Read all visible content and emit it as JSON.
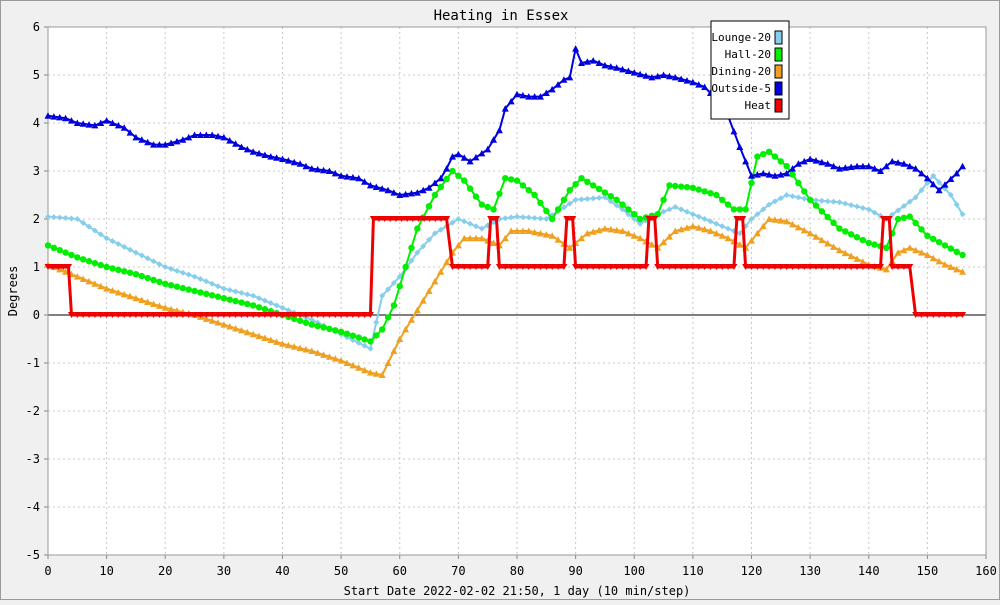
{
  "chart_data": {
    "type": "line",
    "title": "Heating in Essex",
    "xlabel": "Start Date 2022-02-02 21:50, 1 day (10 min/step)",
    "ylabel": "Degrees",
    "xlim": [
      0,
      160
    ],
    "ylim": [
      -5,
      6
    ],
    "xticks": [
      "0",
      "10",
      "20",
      "30",
      "40",
      "50",
      "60",
      "70",
      "80",
      "90",
      "100",
      "110",
      "120",
      "130",
      "140",
      "150",
      "160"
    ],
    "yticks": [
      "6",
      "5",
      "4",
      "3",
      "2",
      "1",
      "0",
      "-1",
      "-2",
      "-3",
      "-4",
      "-5"
    ],
    "grid": true,
    "legend_position": "top-right",
    "series": [
      {
        "name": "Lounge-20",
        "color": "#87ceeb",
        "marker": "diamond",
        "x": [
          0,
          5,
          10,
          15,
          20,
          25,
          30,
          35,
          40,
          45,
          50,
          55,
          57,
          60,
          63,
          66,
          70,
          74,
          77,
          80,
          85,
          90,
          95,
          98,
          101,
          104,
          107,
          110,
          113,
          116,
          118,
          120,
          123,
          126,
          130,
          135,
          140,
          143,
          148,
          151,
          154,
          156
        ],
        "y": [
          2.05,
          2.0,
          1.6,
          1.3,
          1.0,
          0.8,
          0.55,
          0.4,
          0.15,
          -0.1,
          -0.4,
          -0.7,
          0.4,
          0.8,
          1.3,
          1.7,
          2.0,
          1.8,
          2.0,
          2.05,
          2.0,
          2.4,
          2.45,
          2.2,
          1.9,
          2.1,
          2.25,
          2.1,
          1.95,
          1.8,
          1.7,
          2.0,
          2.3,
          2.5,
          2.4,
          2.35,
          2.2,
          2.0,
          2.45,
          2.9,
          2.5,
          2.1
        ]
      },
      {
        "name": "Hall-20",
        "color": "#00ee00",
        "marker": "circle",
        "x": [
          0,
          5,
          10,
          15,
          20,
          25,
          30,
          35,
          40,
          45,
          50,
          55,
          57,
          59,
          61,
          63,
          66,
          69,
          71,
          74,
          76,
          78,
          80,
          83,
          86,
          89,
          91,
          93,
          97,
          101,
          104,
          106,
          110,
          114,
          117,
          119,
          121,
          123,
          126,
          130,
          135,
          140,
          143,
          145,
          147,
          150,
          153,
          156
        ],
        "y": [
          1.45,
          1.2,
          1.0,
          0.85,
          0.65,
          0.5,
          0.35,
          0.2,
          0.0,
          -0.2,
          -0.35,
          -0.55,
          -0.3,
          0.2,
          1.0,
          1.8,
          2.5,
          3.0,
          2.8,
          2.3,
          2.2,
          2.85,
          2.8,
          2.5,
          2.0,
          2.6,
          2.85,
          2.7,
          2.4,
          2.0,
          2.1,
          2.7,
          2.65,
          2.5,
          2.2,
          2.2,
          3.3,
          3.4,
          3.1,
          2.4,
          1.8,
          1.5,
          1.4,
          2.0,
          2.05,
          1.65,
          1.45,
          1.25
        ]
      },
      {
        "name": "Dining-20",
        "color": "#f0a020",
        "marker": "triangle",
        "x": [
          0,
          5,
          10,
          15,
          20,
          25,
          30,
          35,
          40,
          45,
          50,
          55,
          57,
          60,
          63,
          66,
          69,
          71,
          74,
          77,
          79,
          82,
          86,
          89,
          92,
          95,
          98,
          101,
          104,
          107,
          110,
          113,
          116,
          119,
          121,
          123,
          126,
          130,
          135,
          140,
          143,
          145,
          147,
          150,
          153,
          156
        ],
        "y": [
          1.05,
          0.8,
          0.55,
          0.35,
          0.15,
          0.0,
          -0.2,
          -0.4,
          -0.6,
          -0.75,
          -0.95,
          -1.2,
          -1.25,
          -0.5,
          0.1,
          0.7,
          1.3,
          1.6,
          1.6,
          1.45,
          1.75,
          1.75,
          1.65,
          1.4,
          1.7,
          1.8,
          1.75,
          1.6,
          1.4,
          1.75,
          1.85,
          1.75,
          1.6,
          1.4,
          1.7,
          2.0,
          1.95,
          1.7,
          1.35,
          1.05,
          0.95,
          1.3,
          1.4,
          1.25,
          1.05,
          0.9
        ]
      },
      {
        "name": "Outside-5",
        "color": "#0000dd",
        "marker": "triangle",
        "x": [
          0,
          3,
          5,
          8,
          10,
          13,
          15,
          18,
          20,
          23,
          25,
          28,
          30,
          33,
          35,
          38,
          40,
          43,
          45,
          48,
          50,
          53,
          55,
          58,
          60,
          63,
          65,
          67,
          68,
          69,
          70,
          72,
          75,
          77,
          78,
          80,
          82,
          84,
          86,
          88,
          89,
          90,
          91,
          93,
          95,
          97,
          100,
          103,
          105,
          107,
          110,
          112,
          114,
          116,
          118,
          120,
          122,
          124,
          126,
          128,
          130,
          133,
          135,
          138,
          140,
          142,
          144,
          146,
          148,
          150,
          152,
          155,
          156
        ],
        "y": [
          4.15,
          4.1,
          4.0,
          3.95,
          4.05,
          3.9,
          3.7,
          3.55,
          3.55,
          3.65,
          3.75,
          3.75,
          3.7,
          3.5,
          3.4,
          3.3,
          3.25,
          3.15,
          3.05,
          3.0,
          2.9,
          2.85,
          2.7,
          2.6,
          2.5,
          2.55,
          2.65,
          2.85,
          3.05,
          3.3,
          3.35,
          3.2,
          3.45,
          3.85,
          4.3,
          4.6,
          4.55,
          4.55,
          4.7,
          4.9,
          4.95,
          5.55,
          5.25,
          5.3,
          5.2,
          5.15,
          5.05,
          4.95,
          5.0,
          4.95,
          4.85,
          4.75,
          4.5,
          4.15,
          3.5,
          2.9,
          2.95,
          2.9,
          2.95,
          3.15,
          3.25,
          3.15,
          3.05,
          3.1,
          3.1,
          3.0,
          3.2,
          3.15,
          3.05,
          2.85,
          2.6,
          2.95,
          3.1
        ]
      },
      {
        "name": "Heat",
        "color": "#ee0000",
        "marker": "triangle-down",
        "x": [
          0,
          3.5,
          4,
          55,
          55.5,
          68,
          69,
          75,
          75.5,
          76.5,
          77,
          88,
          88.5,
          89.5,
          90,
          102,
          102.5,
          103.5,
          104,
          117,
          117.5,
          118.5,
          119,
          142,
          142.5,
          143.5,
          144,
          147,
          148,
          156
        ],
        "y": [
          1,
          1,
          0,
          0,
          2,
          2,
          1,
          1,
          2,
          2,
          1,
          1,
          2,
          2,
          1,
          1,
          2,
          2,
          1,
          1,
          2,
          2,
          1,
          1,
          2,
          2,
          1,
          1,
          0,
          0
        ]
      }
    ]
  }
}
